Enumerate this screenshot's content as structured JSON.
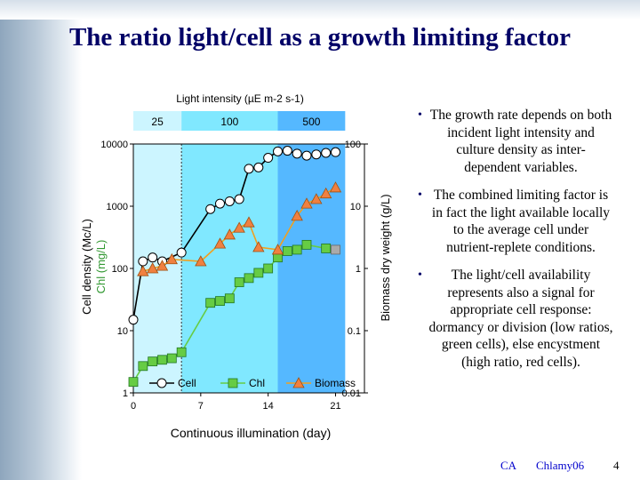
{
  "page_title": "The ratio light/cell as a growth limiting factor",
  "bullets": [
    "The growth rate depends on both incident light intensity and culture density as inter-dependent variables.",
    "The combined limiting factor is in fact the light available locally to the average cell under nutrient-replete conditions.",
    "The light/cell availability represents also a signal for appropriate cell response: dormancy or division (low ratios, green cells), else encystment (high ratio, red cells)."
  ],
  "footer": {
    "author": "CA",
    "deck": "Chlamy06",
    "page": "4"
  },
  "colors": {
    "title": "#000066",
    "cells": "#000000",
    "chl": "#66cc44",
    "biomass": "#f0a020",
    "biomass_fill": "#f08040",
    "zone1": "#ccf5ff",
    "zone2": "#80e8ff",
    "zone3": "#55b8ff"
  },
  "chart_data": {
    "type": "line",
    "top_title": "Light intensity (µE m-2 s-1)",
    "light_zones": [
      {
        "label": "25",
        "x_range": [
          0,
          5
        ]
      },
      {
        "label": "100",
        "x_range": [
          5,
          15
        ]
      },
      {
        "label": "500",
        "x_range": [
          15,
          22
        ]
      }
    ],
    "xlabel": "Continuous illumination (day)",
    "ylabel_left": [
      "Cell density (Mc/L)",
      "Chl (mg/L)"
    ],
    "ylabel_right": "Biomass dry weight (g/L)",
    "x_ticks": [
      "0",
      "7",
      "14",
      "21"
    ],
    "xlim": [
      0,
      24
    ],
    "y_left_scale": "log",
    "y_left_ticks": [
      "1",
      "10",
      "100",
      "1000",
      "10000"
    ],
    "ylim_left": [
      1,
      10000
    ],
    "y_right_scale": "log",
    "y_right_ticks": [
      "0.01",
      "0.1",
      "1",
      "10",
      "100"
    ],
    "ylim_right": [
      0.01,
      100
    ],
    "legend": [
      "Cell",
      "Chl",
      "Biomass"
    ],
    "legend_position": "bottom",
    "series": [
      {
        "name": "Cell",
        "axis": "left",
        "marker": "circle",
        "x": [
          0,
          1,
          2,
          3,
          5,
          8,
          9,
          10,
          11,
          12,
          13,
          14,
          15,
          16,
          17,
          18,
          19,
          20,
          21
        ],
        "y": [
          15,
          130,
          150,
          130,
          180,
          900,
          1100,
          1200,
          1300,
          4000,
          4200,
          6000,
          7600,
          7800,
          7000,
          6500,
          6800,
          7200,
          7400
        ]
      },
      {
        "name": "Chl",
        "axis": "left",
        "marker": "square",
        "x": [
          0,
          1,
          2,
          3,
          4,
          5,
          8,
          9,
          10,
          11,
          12,
          13,
          14,
          15,
          16,
          17,
          18,
          20
        ],
        "y": [
          1.5,
          2.7,
          3.2,
          3.4,
          3.6,
          4.5,
          28,
          30,
          33,
          60,
          70,
          85,
          100,
          150,
          190,
          200,
          240,
          210
        ]
      },
      {
        "name": "Biomass",
        "axis": "right",
        "marker": "triangle",
        "x": [
          1,
          2,
          3,
          4,
          7,
          9,
          10,
          11,
          12,
          13,
          15,
          17,
          18,
          19,
          20,
          21
        ],
        "y": [
          0.9,
          1.0,
          1.1,
          1.4,
          1.3,
          2.5,
          3.5,
          4.5,
          5.5,
          2.2,
          2.0,
          7.0,
          11.0,
          13.0,
          16.0,
          20.0
        ]
      },
      {
        "name": "",
        "axis": "right",
        "marker": "gray-square",
        "x": [
          21
        ],
        "y": [
          2.0
        ]
      }
    ]
  }
}
